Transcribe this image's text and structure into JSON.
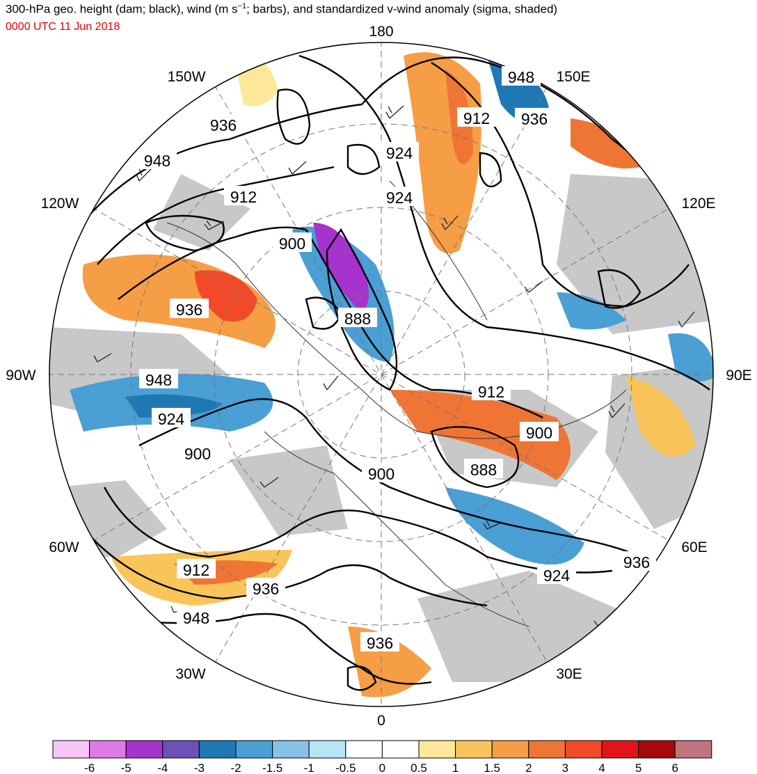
{
  "title": {
    "prefix": "300-hPa geo. height (dam; black), wind (m s",
    "superscript": "−1",
    "suffix": "; barbs), and standardized v-wind anomaly (sigma, shaded)"
  },
  "valid_time": "0000 UTC 11 Jun 2018",
  "colors": {
    "valid_time": "#e00000",
    "coast": "#000000",
    "contour": "#000000",
    "land": "#c8c8c8"
  },
  "longitude_labels": {
    "top": "180",
    "bottom": "0",
    "left": "90W",
    "right": "90E",
    "upper_left_1": "150W",
    "upper_left_2": "120W",
    "upper_right_1": "150E",
    "upper_right_2": "120E",
    "lower_left_1": "60W",
    "lower_left_2": "30W",
    "lower_right_1": "60E",
    "lower_right_2": "30E"
  },
  "contour_labels": [
    {
      "id": "l1",
      "text": "948"
    },
    {
      "id": "l2",
      "text": "912"
    },
    {
      "id": "l3",
      "text": "936"
    },
    {
      "id": "l4",
      "text": "936"
    },
    {
      "id": "l5",
      "text": "948"
    },
    {
      "id": "l6",
      "text": "924"
    },
    {
      "id": "l7",
      "text": "924"
    },
    {
      "id": "l8",
      "text": "912"
    },
    {
      "id": "l9",
      "text": "900"
    },
    {
      "id": "l10",
      "text": "888"
    },
    {
      "id": "l11",
      "text": "936"
    },
    {
      "id": "l12",
      "text": "948"
    },
    {
      "id": "l13",
      "text": "924"
    },
    {
      "id": "l14",
      "text": "900"
    },
    {
      "id": "l15",
      "text": "912"
    },
    {
      "id": "l16",
      "text": "900"
    },
    {
      "id": "l17",
      "text": "888"
    },
    {
      "id": "l18",
      "text": "900"
    },
    {
      "id": "l19",
      "text": "924"
    },
    {
      "id": "l20",
      "text": "936"
    },
    {
      "id": "l21",
      "text": "912"
    },
    {
      "id": "l22",
      "text": "936"
    },
    {
      "id": "l23",
      "text": "948"
    },
    {
      "id": "l24",
      "text": "936"
    }
  ],
  "colorbar": {
    "colors": [
      "#f7c6f7",
      "#de7ae6",
      "#a633cc",
      "#6a52b8",
      "#1f78b4",
      "#4a9fd4",
      "#86c2e6",
      "#b6e5f4",
      "#ffffff",
      "#ffffff",
      "#fde89a",
      "#f9c55a",
      "#f59e45",
      "#ef7534",
      "#f04a28",
      "#e31418",
      "#a6080c",
      "#c0747f"
    ],
    "tick_labels": [
      "-6",
      "-5",
      "-4",
      "-3",
      "-2",
      "-1.5",
      "-1",
      "-0.5",
      "0",
      "0.5",
      "1",
      "1.5",
      "2",
      "3",
      "4",
      "5",
      "6"
    ]
  }
}
